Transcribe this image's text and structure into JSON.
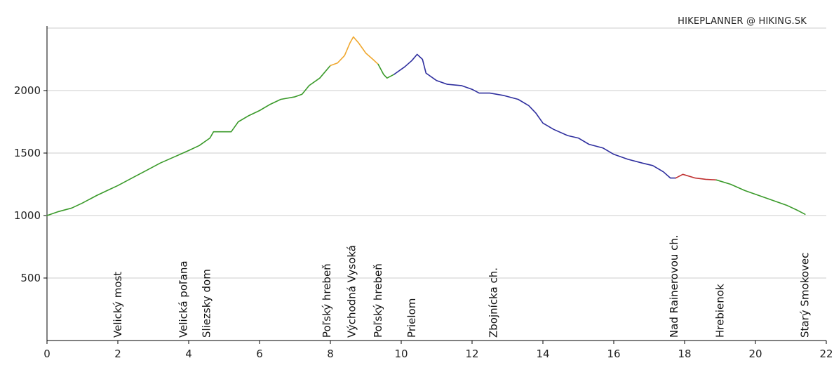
{
  "credit": "HIKEPLANNER @ HIKING.SK",
  "chart_data": {
    "type": "line",
    "title": "",
    "xlabel": "",
    "ylabel": "",
    "xlim": [
      0,
      22
    ],
    "ylim": [
      0,
      2500
    ],
    "x_ticks": [
      0,
      2,
      4,
      6,
      8,
      10,
      12,
      14,
      16,
      18,
      20,
      22
    ],
    "y_ticks": [
      500,
      1000,
      1500,
      2000
    ],
    "grid": "horizontal",
    "series": [
      {
        "color": "#3a9a2a",
        "points": [
          [
            0,
            1000
          ],
          [
            0.3,
            1030
          ],
          [
            0.7,
            1060
          ],
          [
            1.0,
            1100
          ],
          [
            1.4,
            1160
          ],
          [
            1.7,
            1200
          ],
          [
            2.0,
            1240
          ],
          [
            2.4,
            1300
          ],
          [
            2.8,
            1360
          ],
          [
            3.2,
            1420
          ],
          [
            3.6,
            1470
          ],
          [
            4.0,
            1520
          ],
          [
            4.3,
            1560
          ],
          [
            4.6,
            1620
          ],
          [
            4.7,
            1670
          ],
          [
            5.2,
            1670
          ],
          [
            5.4,
            1750
          ],
          [
            5.7,
            1800
          ],
          [
            6.0,
            1840
          ],
          [
            6.3,
            1890
          ],
          [
            6.6,
            1930
          ],
          [
            7.0,
            1950
          ],
          [
            7.2,
            1970
          ],
          [
            7.4,
            2040
          ],
          [
            7.7,
            2100
          ],
          [
            8.0,
            2200
          ]
        ]
      },
      {
        "color": "#f0a830",
        "points": [
          [
            8.0,
            2200
          ],
          [
            8.2,
            2220
          ],
          [
            8.4,
            2280
          ],
          [
            8.55,
            2380
          ],
          [
            8.65,
            2430
          ],
          [
            8.8,
            2380
          ],
          [
            9.0,
            2300
          ],
          [
            9.2,
            2250
          ],
          [
            9.35,
            2210
          ]
        ]
      },
      {
        "color": "#3a9a2a",
        "points": [
          [
            9.35,
            2210
          ],
          [
            9.5,
            2130
          ],
          [
            9.6,
            2100
          ],
          [
            9.8,
            2130
          ]
        ]
      },
      {
        "color": "#2e2e9e",
        "points": [
          [
            9.8,
            2130
          ],
          [
            10.1,
            2190
          ],
          [
            10.3,
            2240
          ],
          [
            10.45,
            2290
          ],
          [
            10.6,
            2250
          ],
          [
            10.7,
            2140
          ],
          [
            11.0,
            2080
          ],
          [
            11.3,
            2050
          ],
          [
            11.7,
            2040
          ],
          [
            12.0,
            2010
          ],
          [
            12.2,
            1980
          ],
          [
            12.5,
            1980
          ],
          [
            12.9,
            1960
          ],
          [
            13.3,
            1930
          ],
          [
            13.6,
            1880
          ],
          [
            13.8,
            1820
          ],
          [
            14.0,
            1740
          ],
          [
            14.3,
            1690
          ],
          [
            14.7,
            1640
          ],
          [
            15.0,
            1620
          ],
          [
            15.3,
            1570
          ],
          [
            15.7,
            1540
          ],
          [
            16.0,
            1490
          ],
          [
            16.4,
            1450
          ],
          [
            16.8,
            1420
          ],
          [
            17.1,
            1400
          ],
          [
            17.4,
            1350
          ],
          [
            17.6,
            1300
          ],
          [
            17.75,
            1300
          ]
        ]
      },
      {
        "color": "#c03030",
        "points": [
          [
            17.75,
            1300
          ],
          [
            17.95,
            1330
          ],
          [
            18.3,
            1300
          ],
          [
            18.6,
            1290
          ],
          [
            18.9,
            1285
          ]
        ]
      },
      {
        "color": "#3a9a2a",
        "points": [
          [
            18.9,
            1285
          ],
          [
            19.3,
            1250
          ],
          [
            19.7,
            1200
          ],
          [
            20.1,
            1160
          ],
          [
            20.5,
            1120
          ],
          [
            20.9,
            1080
          ],
          [
            21.2,
            1040
          ],
          [
            21.4,
            1010
          ]
        ]
      }
    ],
    "annotations": [
      {
        "x": 2.0,
        "label": "Velický most"
      },
      {
        "x": 3.85,
        "label": "Velická poľana"
      },
      {
        "x": 4.5,
        "label": "Sliezsky dom"
      },
      {
        "x": 7.9,
        "label": "Poľský hrebeň"
      },
      {
        "x": 8.6,
        "label": "Východná Vysoká"
      },
      {
        "x": 9.35,
        "label": "Poľský hrebeň"
      },
      {
        "x": 10.3,
        "label": "Prielom"
      },
      {
        "x": 12.6,
        "label": "Zbojnícka ch."
      },
      {
        "x": 17.7,
        "label": "Nad Rainerovou ch."
      },
      {
        "x": 19.0,
        "label": "Hrebienok"
      },
      {
        "x": 21.4,
        "label": "Starý Smokovec"
      }
    ]
  }
}
